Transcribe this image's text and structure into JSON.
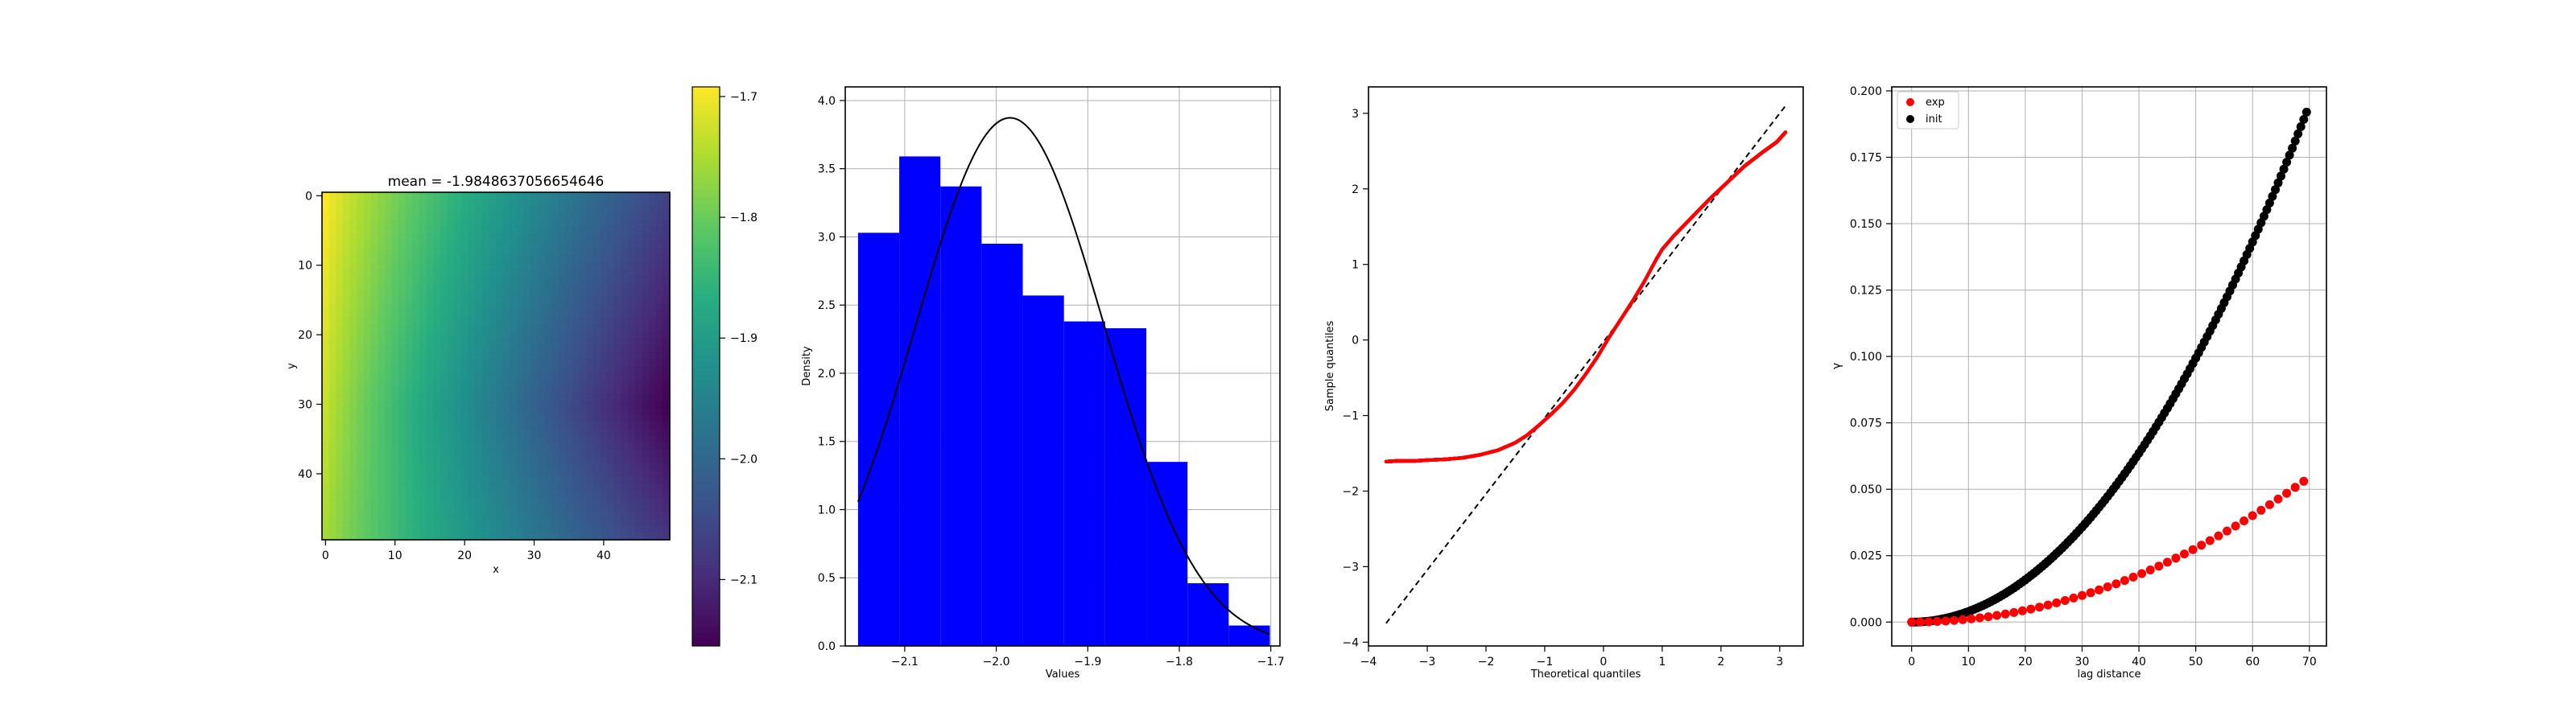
{
  "figure": {
    "background": "#ffffff"
  },
  "chart_data": [
    {
      "type": "heatmap",
      "title": "mean = -1.9848637056654646",
      "xlabel": "x",
      "ylabel": "y",
      "xlim": [
        0,
        50
      ],
      "ylim": [
        50,
        0
      ],
      "x_ticks": [
        0,
        10,
        20,
        30,
        40
      ],
      "y_ticks": [
        0,
        10,
        20,
        30,
        40
      ],
      "colormap": "viridis",
      "value_range": [
        -2.15,
        -1.7
      ],
      "corner_values": {
        "top_left": -1.7,
        "bottom_left": -1.76,
        "right_middle": -2.15,
        "top_right": -2.06,
        "bottom_right": -2.08
      },
      "colorbar": {
        "ticks": [
          -1.7,
          -1.8,
          -1.9,
          -2.0,
          -2.1
        ],
        "tick_labels": [
          "−1.7",
          "−1.8",
          "−1.9",
          "−2.0",
          "−2.1"
        ]
      }
    },
    {
      "type": "bar",
      "subtype": "histogram",
      "xlabel": "Values",
      "ylabel": "Density",
      "xlim": [
        -2.165,
        -1.69
      ],
      "ylim": [
        0,
        4.1
      ],
      "x_ticks": [
        -2.1,
        -2.0,
        -1.9,
        -1.8,
        -1.7
      ],
      "x_tick_labels": [
        "−2.1",
        "−2.0",
        "−1.9",
        "−1.8",
        "−1.7"
      ],
      "y_ticks": [
        0.0,
        0.5,
        1.0,
        1.5,
        2.0,
        2.5,
        3.0,
        3.5,
        4.0
      ],
      "y_tick_labels": [
        "0.0",
        "0.5",
        "1.0",
        "1.5",
        "2.0",
        "2.5",
        "3.0",
        "3.5",
        "4.0"
      ],
      "bin_edges": [
        -2.151,
        -2.106,
        -2.061,
        -2.016,
        -1.971,
        -1.926,
        -1.881,
        -1.836,
        -1.791,
        -1.746,
        -1.701
      ],
      "values": [
        3.03,
        3.59,
        3.37,
        2.95,
        2.57,
        2.38,
        2.33,
        1.35,
        0.46,
        0.15
      ],
      "bar_color": "#0000ff",
      "pdf_curve": {
        "color": "#000000",
        "mean": -1.985,
        "std": 0.103
      },
      "grid": true
    },
    {
      "type": "scatter",
      "subtype": "qq-plot",
      "xlabel": "Theoretical quantiles",
      "ylabel": "Sample quantiles",
      "xlim": [
        -4,
        3.4
      ],
      "ylim": [
        -4.05,
        3.35
      ],
      "x_ticks": [
        -4,
        -3,
        -2,
        -1,
        0,
        1,
        2,
        3
      ],
      "x_tick_labels": [
        "−4",
        "−3",
        "−2",
        "−1",
        "0",
        "1",
        "2",
        "3"
      ],
      "y_ticks": [
        -4,
        -3,
        -2,
        -1,
        0,
        1,
        2,
        3
      ],
      "y_tick_labels": [
        "−4",
        "−3",
        "−2",
        "−1",
        "0",
        "1",
        "2",
        "3"
      ],
      "reference_line": {
        "x": [
          -3.7,
          3.1
        ],
        "y": [
          -3.75,
          3.1
        ],
        "color": "#000000",
        "style": "dashed"
      },
      "point_color": "#ff0000",
      "sample_curve": {
        "x": [
          -3.7,
          -3.5,
          -3.2,
          -3.0,
          -2.7,
          -2.4,
          -2.1,
          -1.8,
          -1.5,
          -1.3,
          -1.1,
          -0.9,
          -0.7,
          -0.5,
          -0.3,
          -0.1,
          0.1,
          0.3,
          0.5,
          0.7,
          0.9,
          1.0,
          1.2,
          1.5,
          1.8,
          2.1,
          2.4,
          2.7,
          2.95,
          3.1
        ],
        "y": [
          -1.61,
          -1.6,
          -1.6,
          -1.59,
          -1.58,
          -1.56,
          -1.52,
          -1.46,
          -1.36,
          -1.26,
          -1.13,
          -0.99,
          -0.84,
          -0.66,
          -0.45,
          -0.22,
          0.04,
          0.28,
          0.52,
          0.78,
          1.07,
          1.2,
          1.38,
          1.62,
          1.86,
          2.08,
          2.3,
          2.48,
          2.62,
          2.75
        ]
      },
      "grid": false
    },
    {
      "type": "scatter",
      "subtype": "variogram",
      "xlabel": "lag distance",
      "ylabel": "γ",
      "xlim": [
        -3.5,
        73
      ],
      "ylim": [
        -0.009,
        0.2015
      ],
      "x_ticks": [
        0,
        10,
        20,
        30,
        40,
        50,
        60,
        70
      ],
      "y_ticks": [
        0.0,
        0.025,
        0.05,
        0.075,
        0.1,
        0.125,
        0.15,
        0.175,
        0.2
      ],
      "y_tick_labels": [
        "0.000",
        "0.025",
        "0.050",
        "0.075",
        "0.100",
        "0.125",
        "0.150",
        "0.175",
        "0.200"
      ],
      "legend": {
        "placement": "top-left",
        "entries": [
          "exp",
          "init"
        ]
      },
      "series": [
        {
          "name": "exp",
          "color": "#ff0000",
          "x_range": [
            0,
            69
          ],
          "step": 1.5,
          "model": "power",
          "coef": 0.053,
          "exponent": 2,
          "x_max": 69
        },
        {
          "name": "init",
          "color": "#000000",
          "x_range": [
            0,
            69.5
          ],
          "step": 0.5,
          "model": "power",
          "coef": 0.192,
          "exponent": 2,
          "x_max": 69.5
        }
      ],
      "grid": true
    }
  ]
}
